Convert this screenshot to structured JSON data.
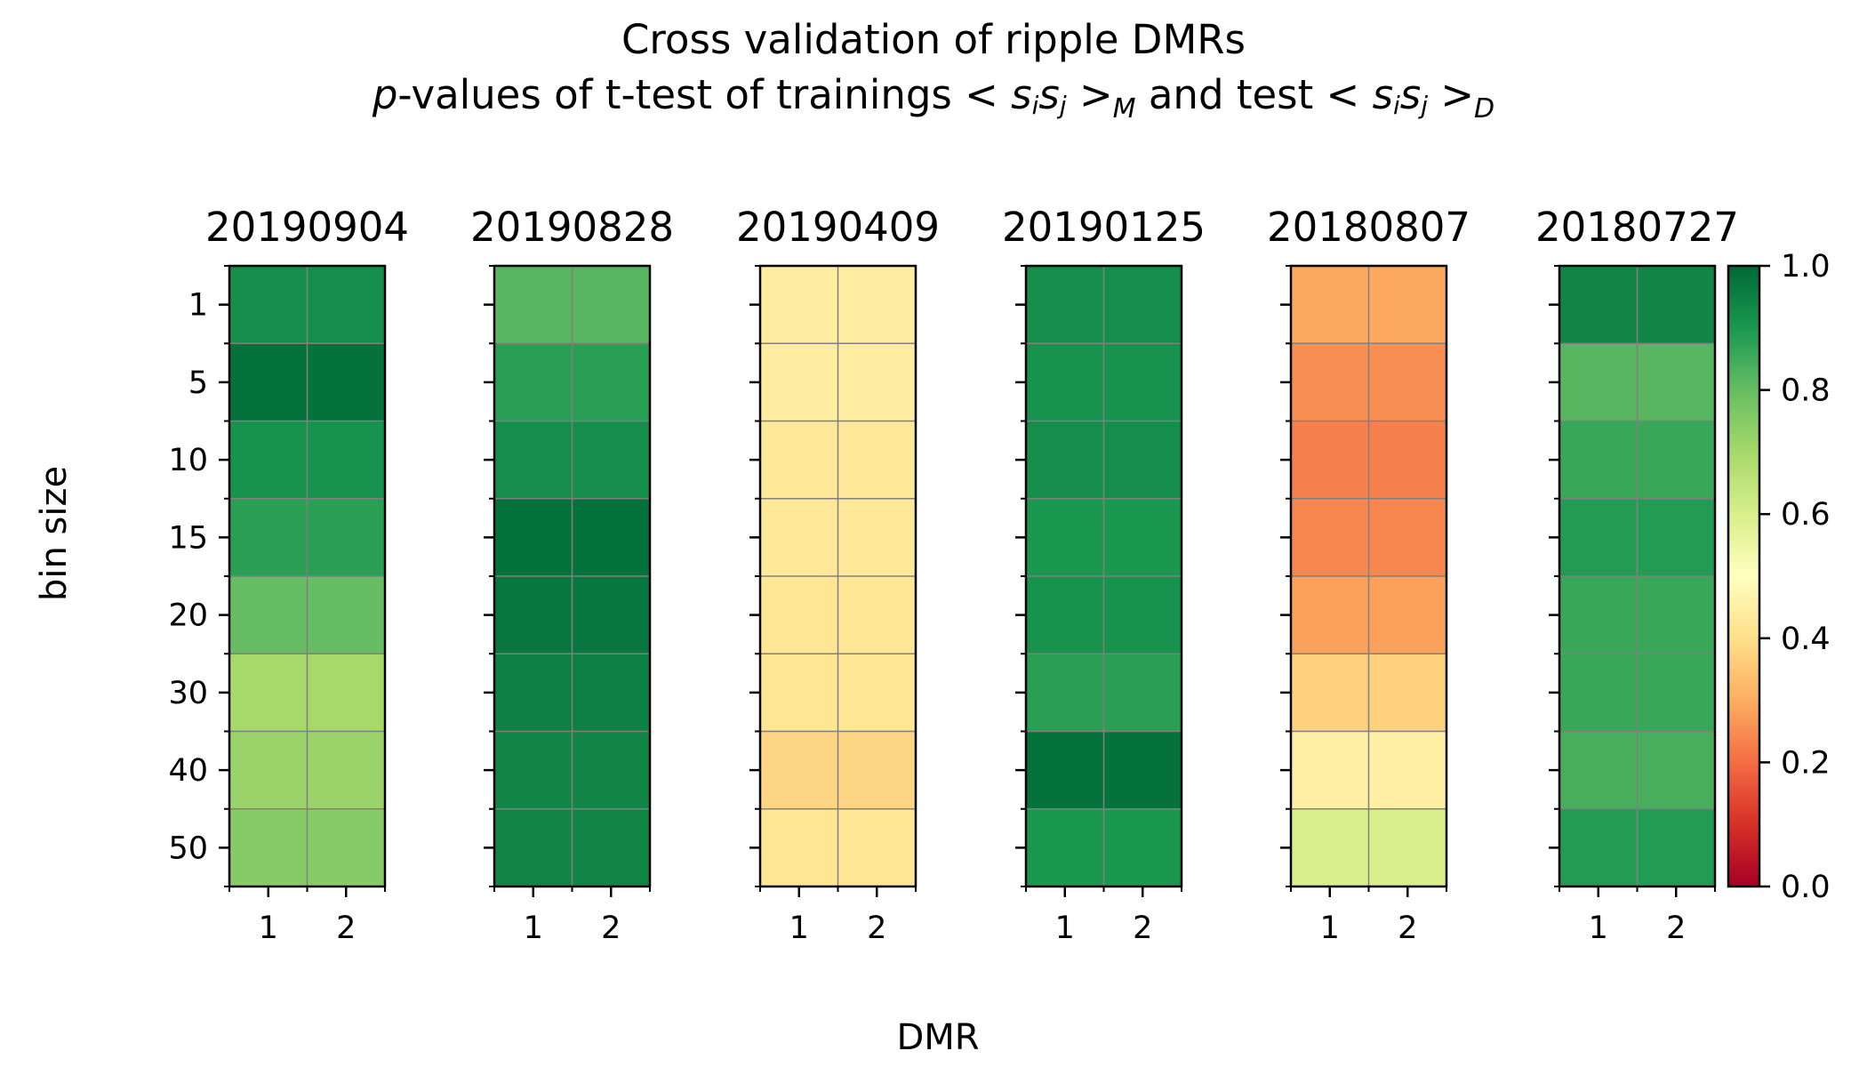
{
  "title_line1": "Cross validation of ripple DMRs",
  "title_line2": {
    "p": "p",
    "part1": "-values of t-test of trainings ",
    "sub_m": "M",
    "part2": " and test ",
    "sub_d": "D"
  },
  "chart_data": {
    "type": "heatmap",
    "xlabel": "DMR",
    "ylabel": "bin size",
    "x_categories": [
      "1",
      "2"
    ],
    "y_categories": [
      "1",
      "5",
      "10",
      "15",
      "20",
      "30",
      "40",
      "50"
    ],
    "colorbar": {
      "colormap": "RdYlGn",
      "range": [
        0.0,
        1.0
      ],
      "ticks": [
        "0.0",
        "0.2",
        "0.4",
        "0.6",
        "0.8",
        "1.0"
      ]
    },
    "panels": [
      {
        "title": "20190904",
        "values": [
          [
            0.92,
            0.92
          ],
          [
            0.98,
            0.98
          ],
          [
            0.91,
            0.91
          ],
          [
            0.88,
            0.88
          ],
          [
            0.8,
            0.8
          ],
          [
            0.7,
            0.7
          ],
          [
            0.72,
            0.72
          ],
          [
            0.75,
            0.75
          ]
        ]
      },
      {
        "title": "20190828",
        "values": [
          [
            0.82,
            0.82
          ],
          [
            0.88,
            0.88
          ],
          [
            0.92,
            0.92
          ],
          [
            0.98,
            0.98
          ],
          [
            0.97,
            0.97
          ],
          [
            0.95,
            0.95
          ],
          [
            0.94,
            0.94
          ],
          [
            0.94,
            0.94
          ]
        ]
      },
      {
        "title": "20190409",
        "values": [
          [
            0.44,
            0.44
          ],
          [
            0.44,
            0.44
          ],
          [
            0.43,
            0.43
          ],
          [
            0.43,
            0.43
          ],
          [
            0.42,
            0.42
          ],
          [
            0.42,
            0.42
          ],
          [
            0.38,
            0.38
          ],
          [
            0.42,
            0.42
          ]
        ]
      },
      {
        "title": "20190125",
        "values": [
          [
            0.92,
            0.92
          ],
          [
            0.91,
            0.91
          ],
          [
            0.92,
            0.92
          ],
          [
            0.9,
            0.9
          ],
          [
            0.91,
            0.91
          ],
          [
            0.88,
            0.88
          ],
          [
            0.98,
            0.98
          ],
          [
            0.9,
            0.9
          ]
        ]
      },
      {
        "title": "20180807",
        "values": [
          [
            0.29,
            0.29
          ],
          [
            0.25,
            0.25
          ],
          [
            0.23,
            0.23
          ],
          [
            0.24,
            0.24
          ],
          [
            0.28,
            0.28
          ],
          [
            0.37,
            0.37
          ],
          [
            0.45,
            0.45
          ],
          [
            0.6,
            0.6
          ]
        ]
      },
      {
        "title": "20180727",
        "values": [
          [
            0.94,
            0.94
          ],
          [
            0.82,
            0.82
          ],
          [
            0.86,
            0.86
          ],
          [
            0.89,
            0.89
          ],
          [
            0.86,
            0.86
          ],
          [
            0.86,
            0.86
          ],
          [
            0.84,
            0.84
          ],
          [
            0.89,
            0.89
          ]
        ]
      }
    ]
  }
}
